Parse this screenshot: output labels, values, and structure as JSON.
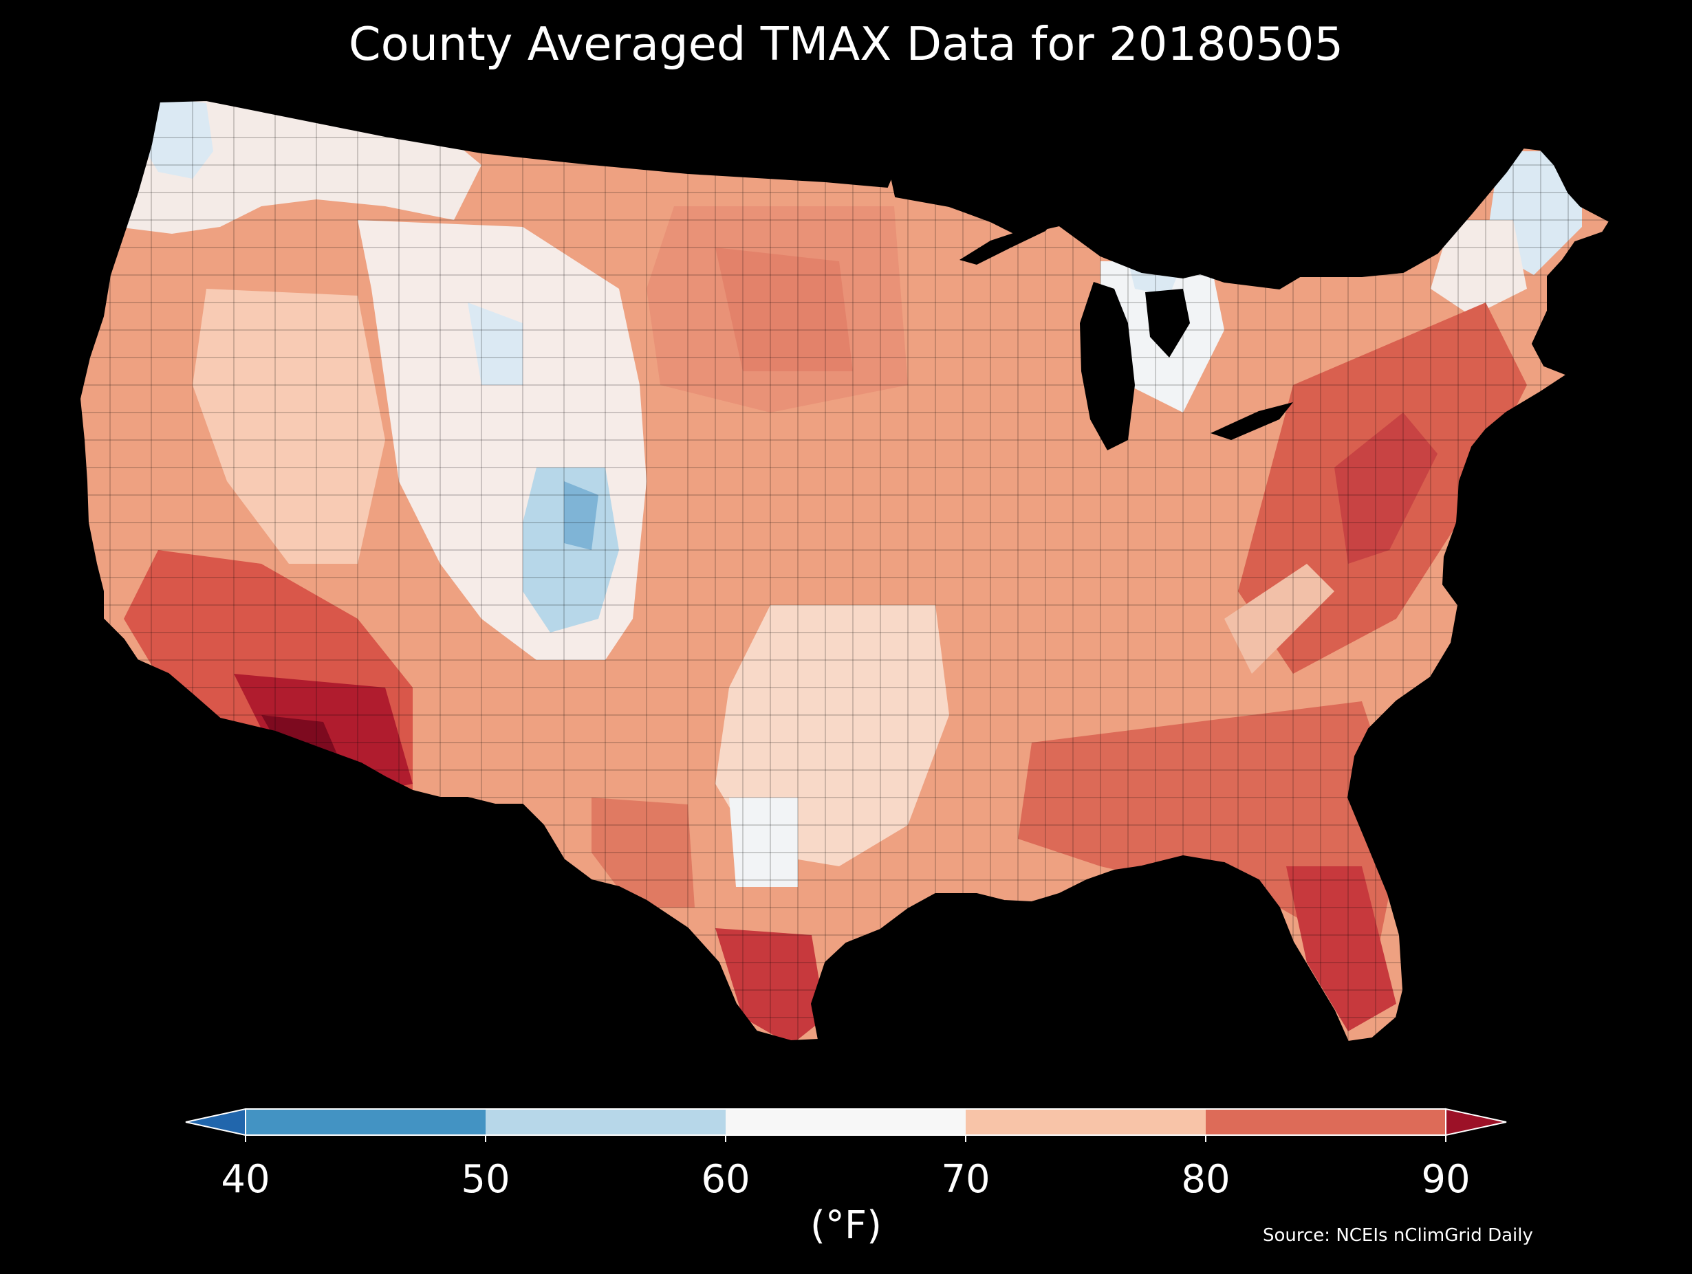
{
  "title": "County Averaged TMAX Data for 20180505",
  "source": "Source: NCEIs nClimGrid Daily",
  "colorbar": {
    "unit_label": "(°F)",
    "ticks": [
      40,
      50,
      60,
      70,
      80,
      90
    ],
    "tick_labels": [
      "40",
      "50",
      "60",
      "70",
      "80",
      "90"
    ],
    "bins": [
      {
        "from": 40,
        "to": 50,
        "color": "#4393c3"
      },
      {
        "from": 50,
        "to": 60,
        "color": "#b7d7e9"
      },
      {
        "from": 60,
        "to": 70,
        "color": "#f7f7f7"
      },
      {
        "from": 70,
        "to": 80,
        "color": "#f8c4a8"
      },
      {
        "from": 80,
        "to": 90,
        "color": "#dd6b58"
      }
    ],
    "under_color": "#2166ac",
    "over_color": "#9c1127"
  },
  "map": {
    "region": "Contiguous United States",
    "water_color": "#000000",
    "county_border_color": "#000000"
  }
}
